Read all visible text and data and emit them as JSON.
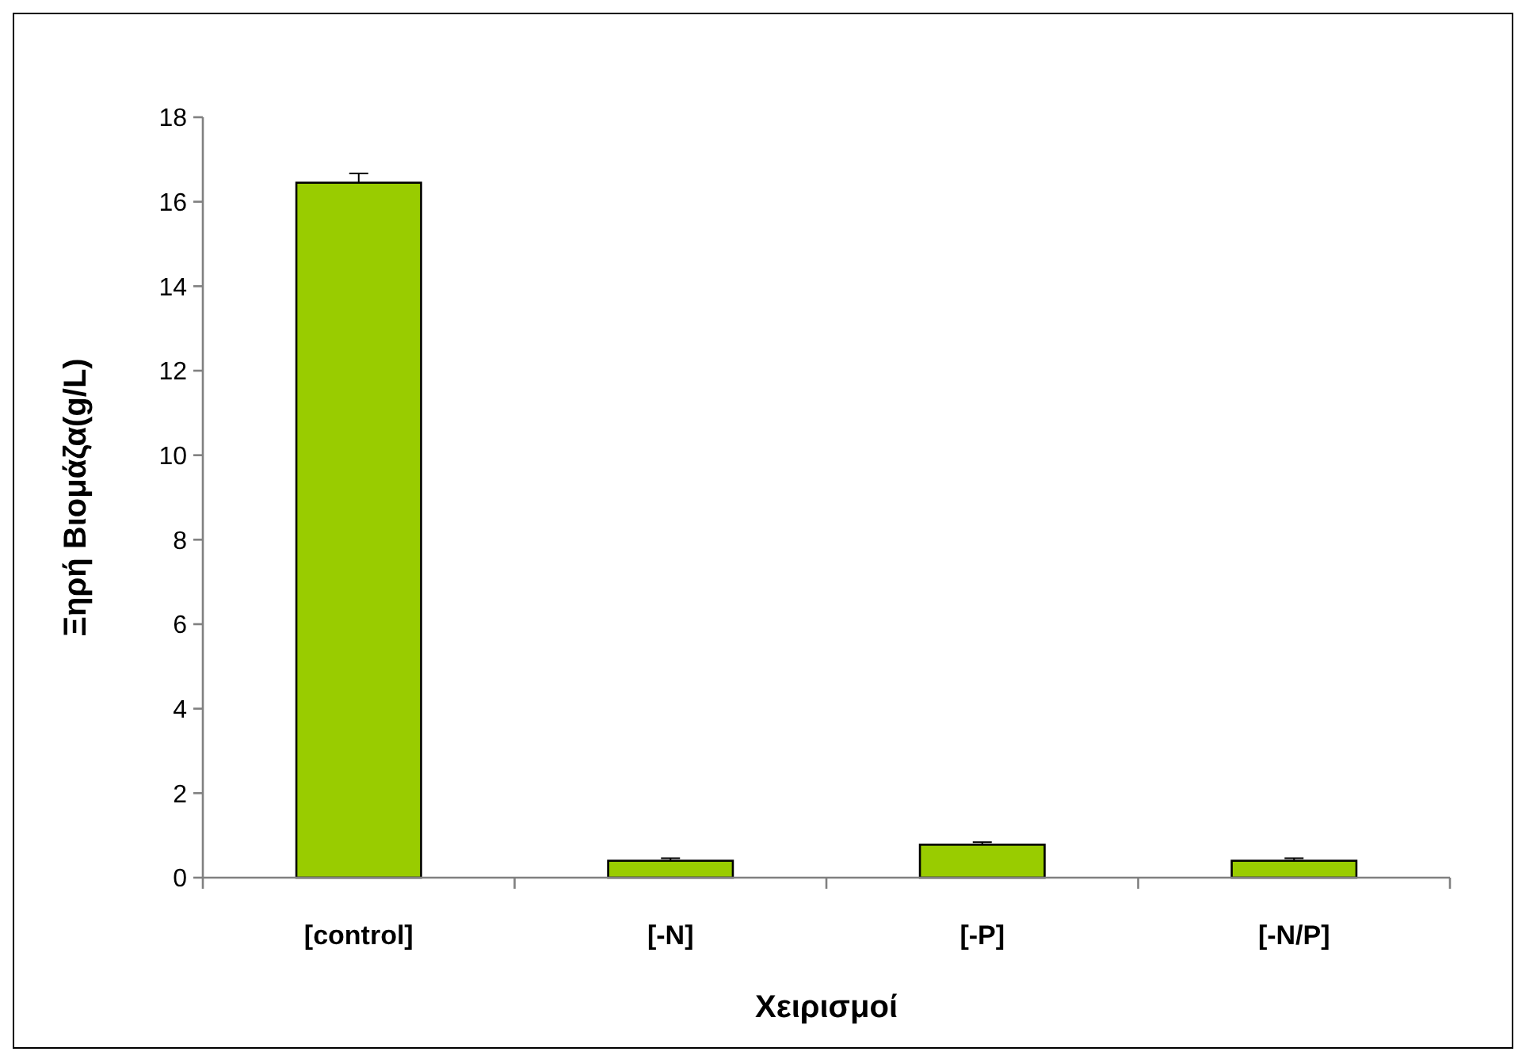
{
  "chart_data": {
    "type": "bar",
    "xlabel": "Χειρισμοί",
    "ylabel": "Ξηρή Βιομάζα(g/L)",
    "categories": [
      "[control]",
      "[-N]",
      "[-P]",
      "[-N/P]"
    ],
    "series": [
      {
        "color": "#99cc00",
        "values": [
          16.45,
          0.4,
          0.78,
          0.4
        ],
        "errors": [
          [
            16.45,
            16.67
          ],
          [
            0.4,
            0.46
          ],
          [
            0.78,
            0.84
          ],
          [
            0.4,
            0.46
          ]
        ]
      }
    ],
    "ylim": [
      0,
      18
    ],
    "yticks": [
      0,
      2,
      4,
      6,
      8,
      10,
      12,
      14,
      16,
      18
    ],
    "grid": false
  }
}
